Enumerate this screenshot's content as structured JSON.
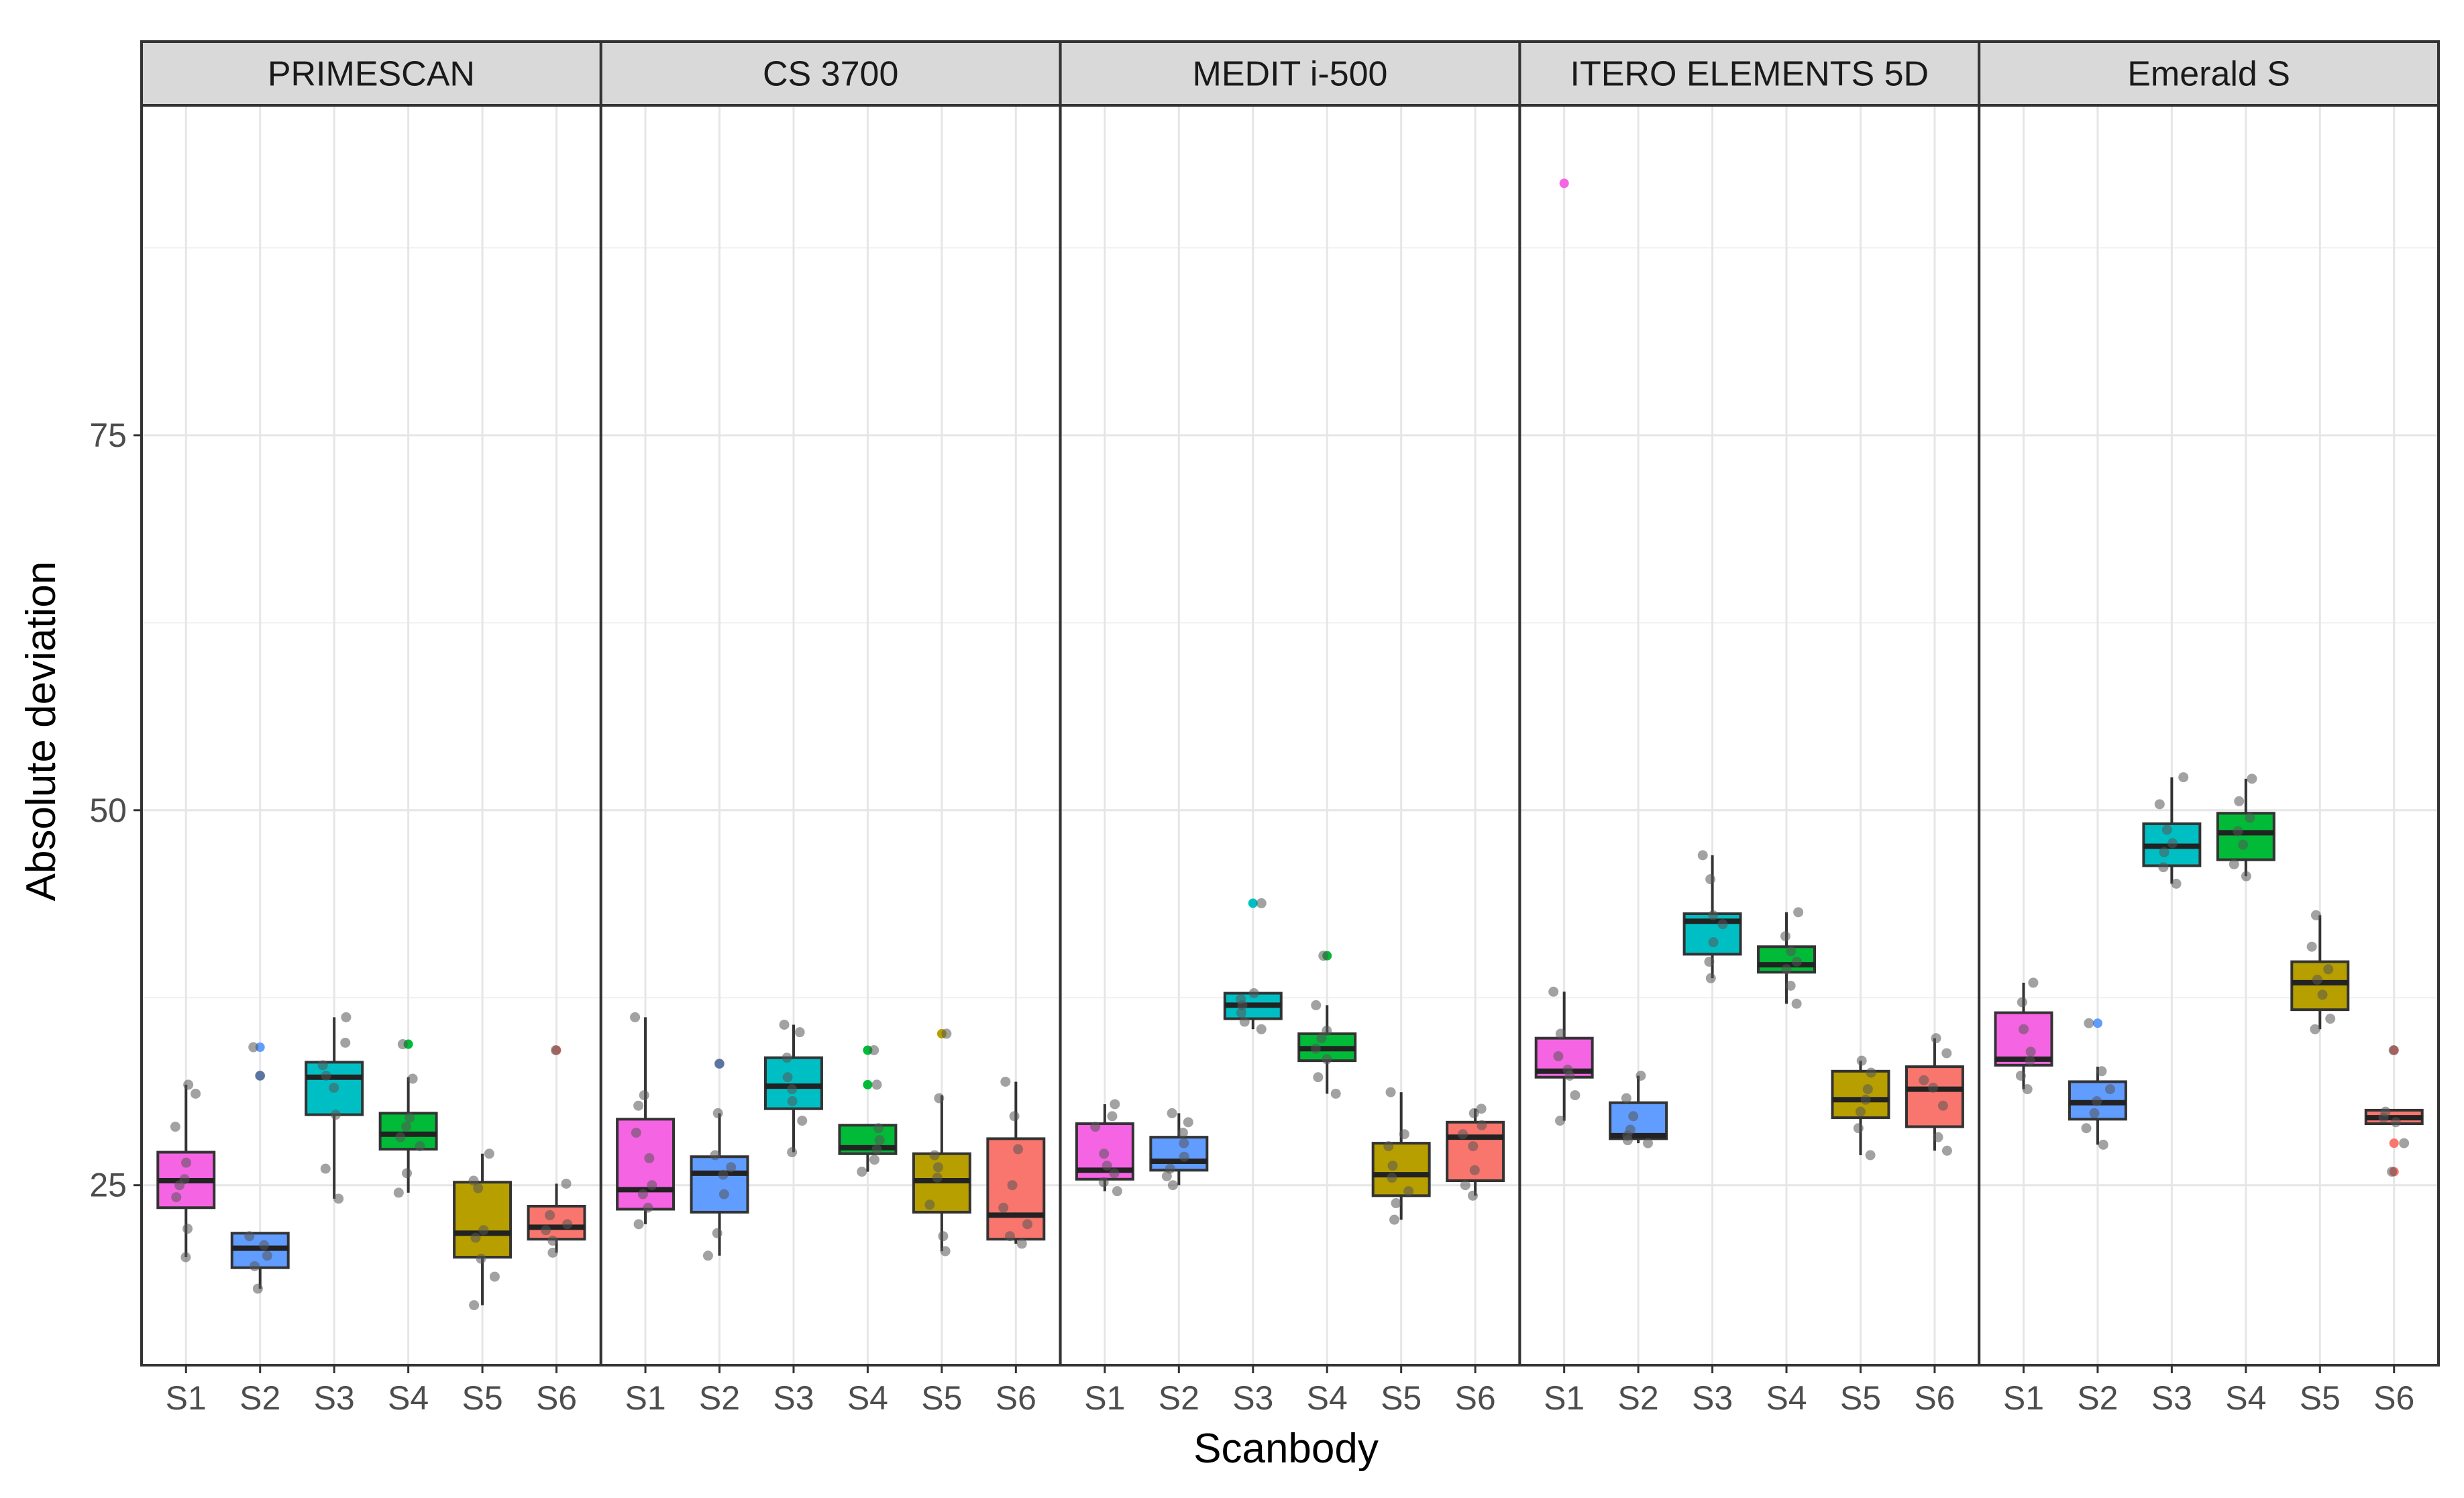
{
  "chart_data": {
    "type": "boxplot",
    "xlabel": "Scanbody",
    "ylabel": "Absolute deviation",
    "ylim": [
      13,
      97
    ],
    "yticks": [
      25,
      50,
      75
    ],
    "grid": true,
    "categories": [
      "S1",
      "S2",
      "S3",
      "S4",
      "S5",
      "S6"
    ],
    "colors": {
      "S1": "#f564e3",
      "S2": "#619cff",
      "S3": "#00bfc4",
      "S4": "#00ba38",
      "S5": "#b79f00",
      "S6": "#f8766d"
    },
    "panels": [
      {
        "label": "PRIMESCAN",
        "boxes": [
          {
            "cat": "S1",
            "q1": 23.5,
            "median": 25.3,
            "q3": 27.2,
            "lo": 20.2,
            "hi": 31.7,
            "outliers": [],
            "points": [
              20.2,
              22.1,
              24.2,
              25.0,
              25.4,
              26.5,
              28.9,
              31.1,
              31.7
            ]
          },
          {
            "cat": "S2",
            "q1": 19.5,
            "median": 20.8,
            "q3": 21.8,
            "lo": 18.1,
            "hi": 21.8,
            "outliers": [
              32.3,
              34.2
            ],
            "points": [
              18.1,
              19.6,
              20.3,
              21.0,
              21.6,
              32.3,
              34.2
            ]
          },
          {
            "cat": "S3",
            "q1": 29.7,
            "median": 32.2,
            "q3": 33.2,
            "lo": 24.1,
            "hi": 36.2,
            "outliers": [],
            "points": [
              24.1,
              26.1,
              29.7,
              31.5,
              32.3,
              33.0,
              34.5,
              36.2
            ]
          },
          {
            "cat": "S4",
            "q1": 27.4,
            "median": 28.4,
            "q3": 29.8,
            "lo": 24.5,
            "hi": 32.2,
            "outliers": [
              34.4
            ],
            "points": [
              24.5,
              25.8,
              27.6,
              28.2,
              28.9,
              29.5,
              32.1,
              34.4
            ]
          },
          {
            "cat": "S5",
            "q1": 20.2,
            "median": 21.8,
            "q3": 25.2,
            "lo": 17.0,
            "hi": 27.1,
            "outliers": [],
            "points": [
              17.0,
              18.9,
              20.1,
              21.5,
              22.0,
              24.8,
              25.3,
              27.1
            ]
          },
          {
            "cat": "S6",
            "q1": 21.4,
            "median": 22.2,
            "q3": 23.6,
            "lo": 20.5,
            "hi": 25.1,
            "outliers": [
              34.0
            ],
            "points": [
              20.5,
              21.3,
              22.0,
              22.4,
              23.0,
              25.1,
              34.0
            ]
          }
        ]
      },
      {
        "label": "CS 3700",
        "boxes": [
          {
            "cat": "S1",
            "q1": 23.4,
            "median": 24.7,
            "q3": 29.4,
            "lo": 22.4,
            "hi": 36.2,
            "outliers": [],
            "points": [
              22.4,
              23.5,
              24.4,
              25.0,
              26.8,
              28.5,
              30.3,
              31.0,
              36.2
            ]
          },
          {
            "cat": "S2",
            "q1": 23.2,
            "median": 25.8,
            "q3": 26.9,
            "lo": 20.3,
            "hi": 29.8,
            "outliers": [
              33.1
            ],
            "points": [
              20.3,
              21.8,
              24.4,
              25.7,
              26.2,
              27.0,
              29.8,
              33.1
            ]
          },
          {
            "cat": "S3",
            "q1": 30.1,
            "median": 31.6,
            "q3": 33.5,
            "lo": 27.2,
            "hi": 35.7,
            "outliers": [],
            "points": [
              27.2,
              29.3,
              30.6,
              31.4,
              32.2,
              33.5,
              35.2,
              35.7
            ]
          },
          {
            "cat": "S4",
            "q1": 27.1,
            "median": 27.5,
            "q3": 29.0,
            "lo": 25.9,
            "hi": 29.0,
            "outliers": [
              31.7,
              34.0
            ],
            "points": [
              25.9,
              26.7,
              27.4,
              28.0,
              28.8,
              31.7,
              34.0
            ]
          },
          {
            "cat": "S5",
            "q1": 23.2,
            "median": 25.3,
            "q3": 27.1,
            "lo": 20.6,
            "hi": 31.0,
            "outliers": [
              35.1
            ],
            "points": [
              20.6,
              21.6,
              23.7,
              25.5,
              26.2,
              27.0,
              30.8,
              35.1
            ]
          },
          {
            "cat": "S6",
            "q1": 21.4,
            "median": 23.0,
            "q3": 28.1,
            "lo": 21.1,
            "hi": 31.9,
            "outliers": [],
            "points": [
              21.1,
              21.6,
              22.4,
              23.5,
              25.0,
              27.4,
              29.6,
              31.9
            ]
          }
        ]
      },
      {
        "label": "MEDIT i-500",
        "boxes": [
          {
            "cat": "S1",
            "q1": 25.4,
            "median": 26.0,
            "q3": 29.1,
            "lo": 24.6,
            "hi": 30.4,
            "outliers": [],
            "points": [
              24.6,
              25.2,
              25.8,
              26.3,
              27.1,
              28.9,
              29.6,
              30.4
            ]
          },
          {
            "cat": "S2",
            "q1": 26.0,
            "median": 26.6,
            "q3": 28.2,
            "lo": 25.0,
            "hi": 29.8,
            "outliers": [],
            "points": [
              25.0,
              25.6,
              26.1,
              26.9,
              27.8,
              28.5,
              29.2,
              29.8
            ]
          },
          {
            "cat": "S3",
            "q1": 36.1,
            "median": 37.0,
            "q3": 37.8,
            "lo": 35.4,
            "hi": 37.8,
            "outliers": [
              43.8
            ],
            "points": [
              35.4,
              35.9,
              36.5,
              37.0,
              37.4,
              37.8,
              43.8
            ]
          },
          {
            "cat": "S4",
            "q1": 33.3,
            "median": 34.1,
            "q3": 35.1,
            "lo": 31.1,
            "hi": 37.0,
            "outliers": [
              40.3
            ],
            "points": [
              31.1,
              32.2,
              33.4,
              34.1,
              34.8,
              35.3,
              37.0,
              40.3
            ]
          },
          {
            "cat": "S5",
            "q1": 24.3,
            "median": 25.7,
            "q3": 27.8,
            "lo": 22.7,
            "hi": 31.2,
            "outliers": [],
            "points": [
              22.7,
              23.8,
              24.6,
              25.5,
              26.3,
              27.6,
              28.4,
              31.2
            ]
          },
          {
            "cat": "S6",
            "q1": 25.3,
            "median": 28.2,
            "q3": 29.2,
            "lo": 24.3,
            "hi": 30.1,
            "outliers": [],
            "points": [
              24.3,
              25.0,
              26.0,
              27.6,
              28.4,
              29.0,
              29.8,
              30.1
            ]
          }
        ]
      },
      {
        "label": "ITERO ELEMENTS 5D",
        "boxes": [
          {
            "cat": "S1",
            "q1": 32.2,
            "median": 32.6,
            "q3": 34.8,
            "lo": 29.3,
            "hi": 37.9,
            "outliers": [
              91.8
            ],
            "points": [
              29.3,
              31.0,
              32.3,
              32.7,
              33.6,
              35.1,
              37.9
            ]
          },
          {
            "cat": "S2",
            "q1": 28.1,
            "median": 28.3,
            "q3": 30.5,
            "lo": 27.8,
            "hi": 32.3,
            "outliers": [],
            "points": [
              27.8,
              28.0,
              28.3,
              28.7,
              29.6,
              30.8,
              32.3
            ]
          },
          {
            "cat": "S3",
            "q1": 40.4,
            "median": 42.6,
            "q3": 43.1,
            "lo": 38.8,
            "hi": 47.0,
            "outliers": [],
            "points": [
              38.8,
              39.9,
              41.2,
              42.4,
              43.0,
              45.4,
              47.0
            ]
          },
          {
            "cat": "S4",
            "q1": 39.2,
            "median": 39.7,
            "q3": 40.9,
            "lo": 37.1,
            "hi": 43.2,
            "outliers": [],
            "points": [
              37.1,
              38.3,
              39.4,
              39.9,
              40.6,
              41.6,
              43.2
            ]
          },
          {
            "cat": "S5",
            "q1": 29.5,
            "median": 30.7,
            "q3": 32.6,
            "lo": 27.0,
            "hi": 33.3,
            "outliers": [],
            "points": [
              27.0,
              28.8,
              29.9,
              30.7,
              31.4,
              32.5,
              33.3
            ]
          },
          {
            "cat": "S6",
            "q1": 28.9,
            "median": 31.4,
            "q3": 32.9,
            "lo": 27.3,
            "hi": 34.8,
            "outliers": [],
            "points": [
              27.3,
              28.2,
              30.3,
              31.5,
              32.0,
              33.8,
              34.8
            ]
          }
        ]
      },
      {
        "label": "Emerald S",
        "boxes": [
          {
            "cat": "S1",
            "q1": 33.0,
            "median": 33.4,
            "q3": 36.5,
            "lo": 31.4,
            "hi": 38.5,
            "outliers": [],
            "points": [
              31.4,
              32.3,
              33.3,
              33.9,
              35.4,
              37.2,
              38.5
            ]
          },
          {
            "cat": "S2",
            "q1": 29.4,
            "median": 30.5,
            "q3": 31.9,
            "lo": 27.7,
            "hi": 32.9,
            "outliers": [
              35.8
            ],
            "points": [
              27.7,
              28.8,
              29.8,
              30.6,
              31.4,
              32.6,
              35.8
            ]
          },
          {
            "cat": "S3",
            "q1": 46.3,
            "median": 47.6,
            "q3": 49.1,
            "lo": 45.1,
            "hi": 52.2,
            "outliers": [],
            "points": [
              45.1,
              46.2,
              47.2,
              47.8,
              48.7,
              50.4,
              52.2
            ]
          },
          {
            "cat": "S4",
            "q1": 46.7,
            "median": 48.5,
            "q3": 49.8,
            "lo": 45.6,
            "hi": 52.1,
            "outliers": [],
            "points": [
              45.6,
              46.4,
              47.7,
              48.6,
              49.5,
              50.6,
              52.1
            ]
          },
          {
            "cat": "S5",
            "q1": 36.7,
            "median": 38.5,
            "q3": 39.9,
            "lo": 35.4,
            "hi": 43.0,
            "outliers": [],
            "points": [
              35.4,
              36.1,
              37.7,
              38.7,
              39.4,
              40.9,
              43.0
            ]
          },
          {
            "cat": "S6",
            "q1": 29.1,
            "median": 29.5,
            "q3": 30.0,
            "lo": 29.1,
            "hi": 30.0,
            "outliers": [
              25.9,
              27.8,
              34.0
            ],
            "points": [
              25.9,
              27.8,
              29.2,
              29.5,
              29.9,
              34.0
            ]
          }
        ]
      }
    ]
  }
}
